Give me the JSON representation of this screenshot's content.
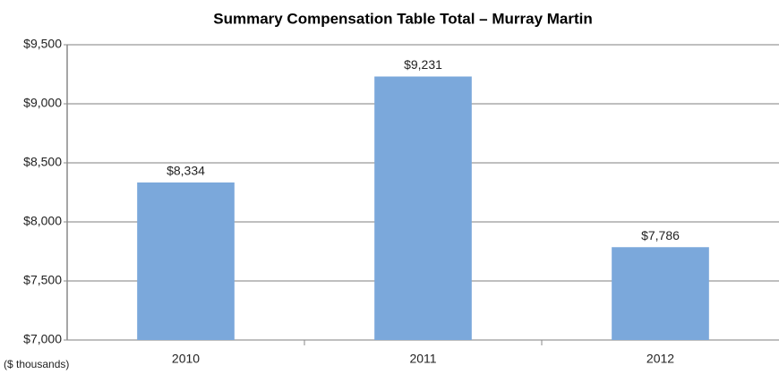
{
  "chart_data": {
    "type": "bar",
    "title": "Summary Compensation Table Total – Murray Martin",
    "y_axis_label": "($ thousands)",
    "categories": [
      "2010",
      "2011",
      "2012"
    ],
    "values": [
      8334,
      9231,
      7786
    ],
    "value_labels": [
      "$8,334",
      "$9,231",
      "$7,786"
    ],
    "color": "#7ba8db",
    "ylim": [
      7000,
      9500
    ],
    "yticks": [
      {
        "value": 7000,
        "label": "$7,000"
      },
      {
        "value": 7500,
        "label": "$7,500"
      },
      {
        "value": 8000,
        "label": "$8,000"
      },
      {
        "value": 8500,
        "label": "$8,500"
      },
      {
        "value": 9000,
        "label": "$9,000"
      },
      {
        "value": 9500,
        "label": "$9,500"
      }
    ],
    "grid": true
  }
}
